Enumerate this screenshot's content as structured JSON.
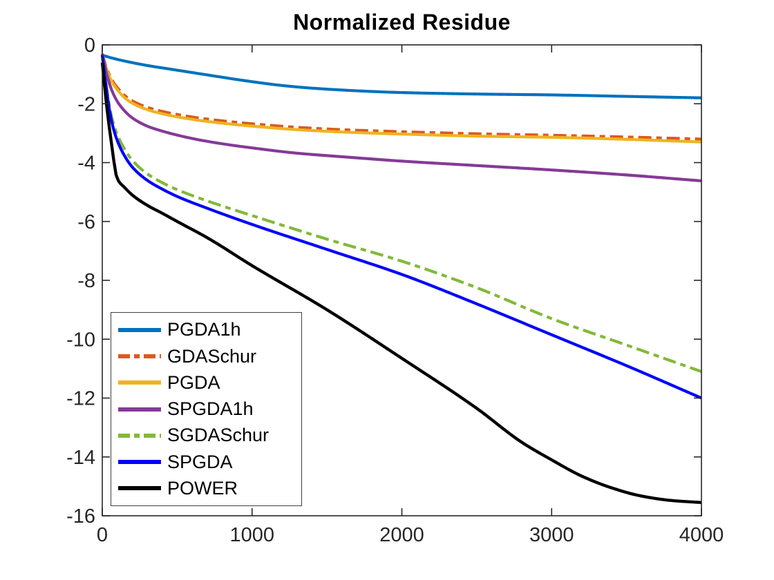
{
  "chart_data": {
    "type": "line",
    "title": "Normalized Residue",
    "xlabel": "",
    "ylabel": "",
    "xlim": [
      0,
      4000
    ],
    "ylim": [
      -16,
      0
    ],
    "x_ticks": [
      0,
      1000,
      2000,
      3000,
      4000
    ],
    "y_ticks": [
      0,
      -2,
      -4,
      -6,
      -8,
      -10,
      -12,
      -14,
      -16
    ],
    "grid": false,
    "box": true,
    "tick_direction": "in",
    "legend_position": "lower-left",
    "axis_color": "#262626",
    "tick_label_color": "#262626",
    "series": [
      {
        "name": "PGDA1h",
        "color": "#0072BD",
        "style": "solid",
        "width": 4.2,
        "points": [
          [
            0,
            -0.35
          ],
          [
            60,
            -0.44
          ],
          [
            150,
            -0.55
          ],
          [
            300,
            -0.7
          ],
          [
            500,
            -0.86
          ],
          [
            700,
            -1.02
          ],
          [
            1000,
            -1.25
          ],
          [
            1200,
            -1.38
          ],
          [
            1400,
            -1.47
          ],
          [
            1700,
            -1.56
          ],
          [
            2000,
            -1.62
          ],
          [
            2500,
            -1.67
          ],
          [
            3000,
            -1.7
          ],
          [
            3500,
            -1.75
          ],
          [
            4000,
            -1.8
          ]
        ]
      },
      {
        "name": "GDASchur",
        "color": "#DC5A1E",
        "style": "dash-dot",
        "width": 4.2,
        "points": [
          [
            0,
            -0.3
          ],
          [
            30,
            -0.8
          ],
          [
            60,
            -1.15
          ],
          [
            100,
            -1.45
          ],
          [
            150,
            -1.72
          ],
          [
            200,
            -1.9
          ],
          [
            300,
            -2.12
          ],
          [
            400,
            -2.26
          ],
          [
            600,
            -2.45
          ],
          [
            800,
            -2.58
          ],
          [
            1000,
            -2.68
          ],
          [
            1300,
            -2.8
          ],
          [
            1600,
            -2.88
          ],
          [
            2000,
            -2.95
          ],
          [
            2500,
            -3.02
          ],
          [
            3000,
            -3.07
          ],
          [
            3500,
            -3.13
          ],
          [
            4000,
            -3.2
          ]
        ]
      },
      {
        "name": "PGDA",
        "color": "#EFB320",
        "style": "solid",
        "width": 4.2,
        "points": [
          [
            0,
            -0.32
          ],
          [
            30,
            -0.85
          ],
          [
            60,
            -1.22
          ],
          [
            100,
            -1.52
          ],
          [
            150,
            -1.8
          ],
          [
            200,
            -1.98
          ],
          [
            300,
            -2.2
          ],
          [
            400,
            -2.34
          ],
          [
            600,
            -2.53
          ],
          [
            800,
            -2.66
          ],
          [
            1000,
            -2.76
          ],
          [
            1300,
            -2.88
          ],
          [
            1600,
            -2.96
          ],
          [
            2000,
            -3.03
          ],
          [
            2500,
            -3.1
          ],
          [
            3000,
            -3.14
          ],
          [
            3500,
            -3.21
          ],
          [
            4000,
            -3.3
          ]
        ]
      },
      {
        "name": "SPGDA1h",
        "color": "#853A96",
        "style": "solid",
        "width": 4.2,
        "points": [
          [
            0,
            -0.3
          ],
          [
            30,
            -1.0
          ],
          [
            60,
            -1.5
          ],
          [
            100,
            -1.92
          ],
          [
            150,
            -2.25
          ],
          [
            200,
            -2.48
          ],
          [
            300,
            -2.76
          ],
          [
            400,
            -2.93
          ],
          [
            600,
            -3.18
          ],
          [
            800,
            -3.36
          ],
          [
            1000,
            -3.5
          ],
          [
            1300,
            -3.68
          ],
          [
            1600,
            -3.8
          ],
          [
            2000,
            -3.95
          ],
          [
            2500,
            -4.1
          ],
          [
            3000,
            -4.25
          ],
          [
            3500,
            -4.42
          ],
          [
            4000,
            -4.62
          ]
        ]
      },
      {
        "name": "SGDASchur",
        "color": "#82B939",
        "style": "dash-dot",
        "width": 4.2,
        "points": [
          [
            0,
            -0.35
          ],
          [
            30,
            -1.5
          ],
          [
            60,
            -2.4
          ],
          [
            100,
            -3.05
          ],
          [
            150,
            -3.55
          ],
          [
            200,
            -3.92
          ],
          [
            300,
            -4.38
          ],
          [
            400,
            -4.68
          ],
          [
            500,
            -4.92
          ],
          [
            700,
            -5.3
          ],
          [
            1000,
            -5.8
          ],
          [
            1500,
            -6.6
          ],
          [
            2000,
            -7.35
          ],
          [
            2500,
            -8.25
          ],
          [
            3000,
            -9.3
          ],
          [
            3500,
            -10.2
          ],
          [
            4000,
            -11.1
          ]
        ]
      },
      {
        "name": "SPGDA",
        "color": "#0000FF",
        "style": "solid",
        "width": 4.2,
        "points": [
          [
            0,
            -0.35
          ],
          [
            30,
            -1.6
          ],
          [
            60,
            -2.55
          ],
          [
            100,
            -3.25
          ],
          [
            150,
            -3.78
          ],
          [
            200,
            -4.15
          ],
          [
            300,
            -4.6
          ],
          [
            400,
            -4.9
          ],
          [
            500,
            -5.15
          ],
          [
            700,
            -5.55
          ],
          [
            1000,
            -6.1
          ],
          [
            1500,
            -6.95
          ],
          [
            2000,
            -7.8
          ],
          [
            2500,
            -8.8
          ],
          [
            3000,
            -9.85
          ],
          [
            3500,
            -10.9
          ],
          [
            4000,
            -12.0
          ]
        ]
      },
      {
        "name": "POWER",
        "color": "#000000",
        "style": "solid",
        "width": 4.4,
        "points": [
          [
            0,
            -0.6
          ],
          [
            30,
            -2.1
          ],
          [
            60,
            -3.3
          ],
          [
            100,
            -4.55
          ],
          [
            150,
            -4.85
          ],
          [
            200,
            -5.1
          ],
          [
            300,
            -5.45
          ],
          [
            400,
            -5.72
          ],
          [
            500,
            -6.0
          ],
          [
            700,
            -6.55
          ],
          [
            1000,
            -7.5
          ],
          [
            1500,
            -9.0
          ],
          [
            2000,
            -10.65
          ],
          [
            2500,
            -12.35
          ],
          [
            2800,
            -13.5
          ],
          [
            3000,
            -14.1
          ],
          [
            3200,
            -14.65
          ],
          [
            3400,
            -15.05
          ],
          [
            3600,
            -15.33
          ],
          [
            3800,
            -15.48
          ],
          [
            4000,
            -15.55
          ]
        ]
      }
    ]
  }
}
